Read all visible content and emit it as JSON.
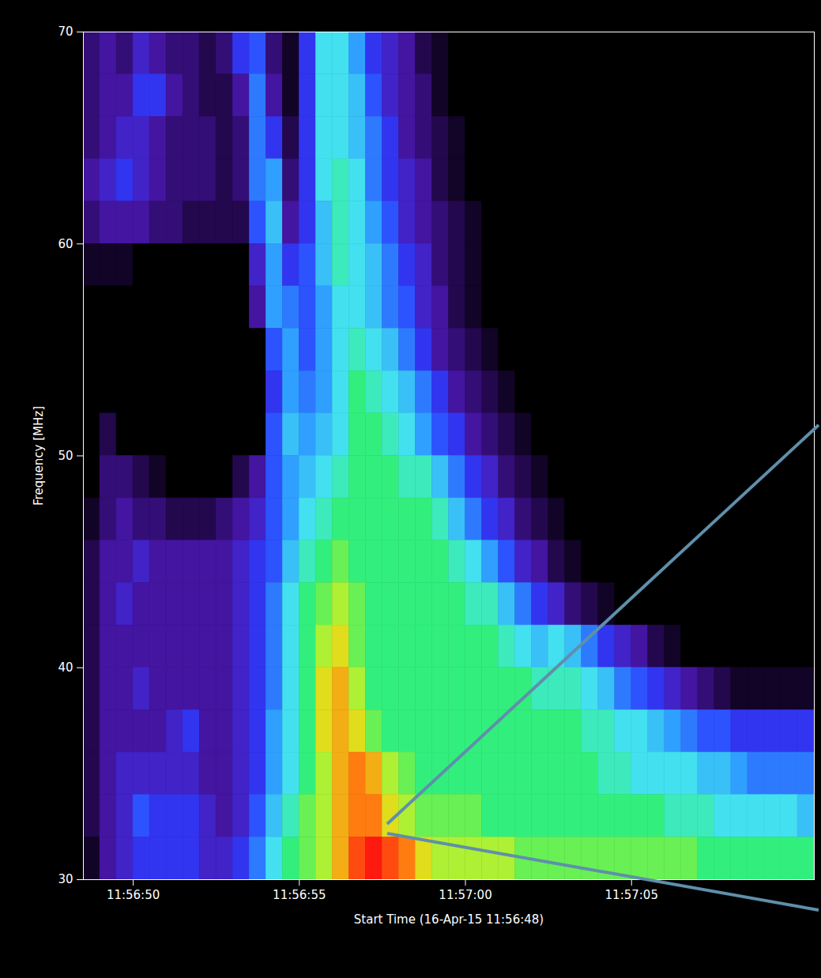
{
  "chart_data": {
    "type": "heatmap",
    "xlabel": "Start Time (16-Apr-15 11:56:48)",
    "ylabel": "Frequency [MHz]",
    "xlim": [
      0.5,
      22.5
    ],
    "ylim": [
      30,
      70
    ],
    "xticks": [
      {
        "value": 2,
        "label": "11:56:50"
      },
      {
        "value": 7,
        "label": "11:56:55"
      },
      {
        "value": 12,
        "label": "11:57:00"
      },
      {
        "value": 17,
        "label": "11:57:05"
      }
    ],
    "yticks": [
      30,
      40,
      50,
      60,
      70
    ],
    "zlim": [
      0,
      10
    ],
    "time_edges": [
      0.5,
      1,
      1.5,
      2,
      2.5,
      3,
      3.5,
      4,
      4.5,
      5,
      5.5,
      6,
      6.5,
      7,
      7.5,
      8,
      8.5,
      9,
      9.5,
      10,
      10.5,
      11,
      11.5,
      12,
      12.5,
      13,
      13.5,
      14,
      14.5,
      15,
      15.5,
      16,
      16.5,
      17,
      17.5,
      18,
      18.5,
      19,
      19.5,
      20,
      20.5,
      21,
      21.5,
      22,
      22.5
    ],
    "frequency_edges": [
      70,
      68,
      66,
      64,
      62,
      60,
      58,
      56,
      54,
      52,
      50,
      48,
      46,
      44,
      42,
      40,
      38,
      36,
      34,
      32,
      30
    ],
    "intensity": [
      [
        1.5,
        2,
        1.5,
        2.5,
        2,
        1.5,
        1.5,
        1,
        1.5,
        3,
        3.5,
        1.5,
        0.5,
        3,
        5.5,
        5.5,
        4.5,
        3,
        2.5,
        2,
        1,
        0.5,
        0,
        0,
        0,
        0,
        0,
        0,
        0,
        0,
        0,
        0,
        0,
        0,
        0,
        0,
        0,
        0,
        0,
        0,
        0,
        0,
        0,
        0
      ],
      [
        1.5,
        2,
        2,
        3,
        3,
        2,
        1.5,
        1,
        1,
        2,
        4,
        2,
        0.5,
        3,
        5.5,
        5.5,
        5,
        3.5,
        2.5,
        2,
        1.5,
        0.5,
        0,
        0,
        0,
        0,
        0,
        0,
        0,
        0,
        0,
        0,
        0,
        0,
        0,
        0,
        0,
        0,
        0,
        0,
        0,
        0,
        0,
        0
      ],
      [
        1.5,
        2,
        2.5,
        2.5,
        2,
        1.5,
        1.5,
        1.5,
        1,
        1.5,
        4,
        3,
        1,
        3,
        5.5,
        5.5,
        5,
        4,
        3,
        2,
        1.5,
        1,
        0.5,
        0,
        0,
        0,
        0,
        0,
        0,
        0,
        0,
        0,
        0,
        0,
        0,
        0,
        0,
        0,
        0,
        0,
        0,
        0,
        0,
        0
      ],
      [
        2,
        2.5,
        3,
        2.5,
        2,
        1.5,
        1.5,
        1.5,
        1,
        1.5,
        4,
        4.5,
        1.5,
        3,
        5.5,
        6,
        5.5,
        4,
        3,
        2.5,
        2,
        1,
        0.5,
        0,
        0,
        0,
        0,
        0,
        0,
        0,
        0,
        0,
        0,
        0,
        0,
        0,
        0,
        0,
        0,
        0,
        0,
        0,
        0,
        0
      ],
      [
        1.5,
        2,
        2,
        2,
        1.5,
        1.5,
        1,
        1,
        1,
        1,
        3.5,
        5,
        2,
        3,
        5,
        6,
        5.5,
        4.5,
        3.5,
        2.5,
        2,
        1.5,
        1,
        0.5,
        0,
        0,
        0,
        0,
        0,
        0,
        0,
        0,
        0,
        0,
        0,
        0,
        0,
        0,
        0,
        0,
        0,
        0,
        0,
        0
      ],
      [
        0.5,
        0.5,
        0.5,
        0,
        0,
        0,
        0,
        0,
        0,
        0,
        2.5,
        4.5,
        3,
        3.5,
        5,
        6,
        5.5,
        5,
        4,
        3,
        2.5,
        1.5,
        1,
        0.5,
        0,
        0,
        0,
        0,
        0,
        0,
        0,
        0,
        0,
        0,
        0,
        0,
        0,
        0,
        0,
        0,
        0,
        0,
        0,
        0
      ],
      [
        0,
        0,
        0,
        0,
        0,
        0,
        0,
        0,
        0,
        0,
        2,
        4.5,
        4,
        3.5,
        4.5,
        5.5,
        5.5,
        5,
        4,
        3.5,
        2.5,
        2,
        1,
        0.5,
        0,
        0,
        0,
        0,
        0,
        0,
        0,
        0,
        0,
        0,
        0,
        0,
        0,
        0,
        0,
        0,
        0,
        0,
        0,
        0
      ],
      [
        0,
        0,
        0,
        0,
        0,
        0,
        0,
        0,
        0,
        0,
        0,
        3.5,
        4.5,
        3.5,
        4.5,
        5.5,
        6,
        5.5,
        5,
        4,
        3,
        2,
        1.5,
        1,
        0.5,
        0,
        0,
        0,
        0,
        0,
        0,
        0,
        0,
        0,
        0,
        0,
        0,
        0,
        0,
        0,
        0,
        0,
        0,
        0
      ],
      [
        0,
        0,
        0,
        0,
        0,
        0,
        0,
        0,
        0,
        0,
        0,
        3,
        4.5,
        4,
        4.5,
        5.5,
        6.5,
        6,
        5.5,
        5,
        4,
        3,
        2,
        1.5,
        1,
        0.5,
        0,
        0,
        0,
        0,
        0,
        0,
        0,
        0,
        0,
        0,
        0,
        0,
        0,
        0,
        0,
        0,
        0,
        0
      ],
      [
        0,
        1,
        0,
        0,
        0,
        0,
        0,
        0,
        0,
        0,
        0,
        3.5,
        5,
        4.5,
        5,
        5.5,
        6.5,
        6.5,
        6,
        5.5,
        4.5,
        3.5,
        3,
        2,
        1.5,
        1,
        0.5,
        0,
        0,
        0,
        0,
        0,
        0,
        0,
        0,
        0,
        0,
        0,
        0,
        0,
        0,
        0,
        0,
        0
      ],
      [
        0,
        1.5,
        1.5,
        1,
        0.5,
        0,
        0,
        0,
        0,
        1,
        2,
        3.5,
        4.5,
        5,
        5.5,
        6,
        6.5,
        6.5,
        6.5,
        6,
        6,
        5,
        4,
        3,
        2.5,
        1.5,
        1,
        0.5,
        0,
        0,
        0,
        0,
        0,
        0,
        0,
        0,
        0,
        0,
        0,
        0,
        0,
        0,
        0,
        0
      ],
      [
        0.5,
        1.5,
        2,
        1.5,
        1.5,
        1,
        1,
        1,
        1.5,
        2,
        2.5,
        3.5,
        4.5,
        5.5,
        6,
        6.5,
        6.5,
        6.5,
        6.5,
        6.5,
        6.5,
        6,
        5,
        4,
        3,
        2.5,
        1.5,
        1,
        0.5,
        0,
        0,
        0,
        0,
        0,
        0,
        0,
        0,
        0,
        0,
        0,
        0,
        0,
        0,
        0
      ],
      [
        1,
        2,
        2,
        2.5,
        2,
        2,
        2,
        2,
        2,
        2.5,
        3,
        3.5,
        5,
        6,
        6.5,
        7,
        6.5,
        6.5,
        6.5,
        6.5,
        6.5,
        6.5,
        6,
        5.5,
        4.5,
        3.5,
        2.5,
        2,
        1,
        0.5,
        0,
        0,
        0,
        0,
        0,
        0,
        0,
        0,
        0,
        0,
        0,
        0,
        0,
        0
      ],
      [
        1,
        2,
        2.5,
        2,
        2,
        2,
        2,
        2,
        2,
        2.5,
        3,
        4,
        5.5,
        6.5,
        7,
        7.5,
        7,
        6.5,
        6.5,
        6.5,
        6.5,
        6.5,
        6.5,
        6,
        6,
        5,
        4,
        3,
        2.5,
        1.5,
        1,
        0.5,
        0,
        0,
        0,
        0,
        0,
        0,
        0,
        0,
        0,
        0,
        0,
        0
      ],
      [
        1,
        2,
        2,
        2,
        2,
        2,
        2,
        2,
        2,
        2.5,
        3,
        4,
        5.5,
        6.5,
        7.5,
        8,
        7,
        6.5,
        6.5,
        6.5,
        6.5,
        6.5,
        6.5,
        6.5,
        6.5,
        6,
        5.5,
        5,
        5.5,
        5,
        4,
        3,
        2.5,
        2,
        1,
        0.5,
        0,
        0,
        0,
        0,
        0,
        0,
        0,
        0
      ],
      [
        1,
        2,
        2,
        2.5,
        2,
        2,
        2,
        2,
        2,
        2.5,
        3,
        4,
        5.5,
        6.5,
        8,
        8.5,
        7.5,
        6.5,
        6.5,
        6.5,
        6.5,
        6.5,
        6.5,
        6.5,
        6.5,
        6.5,
        6.5,
        6,
        6,
        6,
        5.5,
        5,
        4,
        3.5,
        3,
        2.5,
        2,
        1.5,
        1,
        0.5,
        0.5,
        0.5,
        0.5,
        0.5
      ],
      [
        1,
        2,
        2,
        2,
        2,
        2.5,
        3,
        2,
        2,
        2.5,
        3,
        4.5,
        5.5,
        6.5,
        8,
        8.5,
        8,
        7,
        6.5,
        6.5,
        6.5,
        6.5,
        6.5,
        6.5,
        6.5,
        6.5,
        6.5,
        6.5,
        6.5,
        6.5,
        6,
        6,
        5.5,
        5.5,
        5,
        4.5,
        4,
        3.5,
        3.5,
        3,
        3,
        3,
        3,
        3
      ],
      [
        1,
        2,
        2.5,
        2.5,
        2.5,
        2.5,
        2.5,
        2,
        2,
        2.5,
        3,
        4.5,
        5.5,
        6.5,
        7.5,
        8.5,
        9,
        8.5,
        7.5,
        7,
        6.5,
        6.5,
        6.5,
        6.5,
        6.5,
        6.5,
        6.5,
        6.5,
        6.5,
        6.5,
        6.5,
        6,
        6,
        5.5,
        5.5,
        5.5,
        5.5,
        5,
        5,
        4.5,
        4,
        4,
        4,
        4
      ],
      [
        1,
        2,
        2.5,
        3.5,
        3,
        3,
        3,
        2.5,
        2,
        2.5,
        3.5,
        5,
        6,
        7,
        7.5,
        8.5,
        9,
        9,
        8,
        7.5,
        7,
        7,
        7,
        7,
        6.5,
        6.5,
        6.5,
        6.5,
        6.5,
        6.5,
        6.5,
        6.5,
        6.5,
        6.5,
        6.5,
        6,
        6,
        6,
        5.5,
        5.5,
        5.5,
        5.5,
        5.5,
        5
      ],
      [
        0.5,
        2,
        2.5,
        3,
        3,
        3,
        3,
        2.5,
        2.5,
        3,
        4,
        5.5,
        6.5,
        7,
        7.5,
        8.5,
        9.5,
        10,
        9.5,
        9,
        8,
        7.5,
        7.5,
        7.5,
        7.5,
        7.5,
        7,
        7,
        7,
        7,
        7,
        7,
        7,
        7,
        7,
        7,
        7,
        6.5,
        6.5,
        6.5,
        6.5,
        6.5,
        6.5,
        6.5
      ]
    ]
  }
}
